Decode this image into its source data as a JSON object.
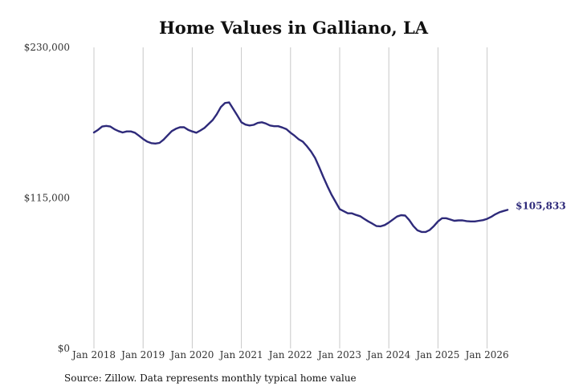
{
  "title": "Home Values in Galliano, LA",
  "source": "Source: Zillow. Data represents monthly typical home value",
  "colors": {
    "line": "#2e2a7a",
    "grid": "#c8c8c8"
  },
  "chart_data": {
    "type": "line",
    "title": "Home Values in Galliano, LA",
    "xlabel": "",
    "ylabel": "",
    "ylim": [
      0,
      230000
    ],
    "y_ticks": [
      {
        "value": 0,
        "label": "$0"
      },
      {
        "value": 115000,
        "label": "$115,000"
      },
      {
        "value": 230000,
        "label": "$230,000"
      }
    ],
    "x_ticks": [
      {
        "value": 2018.0,
        "label": "Jan 2018"
      },
      {
        "value": 2019.0,
        "label": "Jan 2019"
      },
      {
        "value": 2020.0,
        "label": "Jan 2020"
      },
      {
        "value": 2021.0,
        "label": "Jan 2021"
      },
      {
        "value": 2022.0,
        "label": "Jan 2022"
      },
      {
        "value": 2023.0,
        "label": "Jan 2023"
      },
      {
        "value": 2024.0,
        "label": "Jan 2024"
      },
      {
        "value": 2025.0,
        "label": "Jan 2025"
      },
      {
        "value": 2026.0,
        "label": "Jan 2026"
      }
    ],
    "xlim": [
      2017.75,
      2026.75
    ],
    "grid": "vertical",
    "end_label": "$105,833",
    "series": [
      {
        "x": [
          2018.0,
          2018.083,
          2018.167,
          2018.25,
          2018.333,
          2018.417,
          2018.5,
          2018.583,
          2018.667,
          2018.75,
          2018.833,
          2018.917,
          2019.0,
          2019.083,
          2019.167,
          2019.25,
          2019.333,
          2019.417,
          2019.5,
          2019.583,
          2019.667,
          2019.75,
          2019.833,
          2019.917,
          2020.0,
          2020.083,
          2020.167,
          2020.25,
          2020.333,
          2020.417,
          2020.5,
          2020.583,
          2020.667,
          2020.75,
          2020.833,
          2020.917,
          2021.0,
          2021.083,
          2021.167,
          2021.25,
          2021.333,
          2021.417,
          2021.5,
          2021.583,
          2021.667,
          2021.75,
          2021.833,
          2021.917,
          2022.0,
          2022.083,
          2022.167,
          2022.25,
          2022.333,
          2022.417,
          2022.5,
          2022.583,
          2022.667,
          2022.75,
          2022.833,
          2022.917,
          2023.0,
          2023.083,
          2023.167,
          2023.25,
          2023.333,
          2023.417,
          2023.5,
          2023.583,
          2023.667,
          2023.75,
          2023.833,
          2023.917,
          2024.0,
          2024.083,
          2024.167,
          2024.25,
          2024.333,
          2024.417,
          2024.5,
          2024.583,
          2024.667,
          2024.75,
          2024.833,
          2024.917,
          2025.0,
          2025.083,
          2025.167,
          2025.25,
          2025.333,
          2025.417,
          2025.5,
          2025.583,
          2025.667,
          2025.75,
          2025.833,
          2025.917,
          2026.0,
          2026.083,
          2026.167,
          2026.25,
          2026.333,
          2026.417
        ],
        "values": [
          165000,
          167000,
          169500,
          170000,
          169500,
          167500,
          166000,
          165000,
          165800,
          165800,
          164800,
          162500,
          160000,
          158000,
          156800,
          156500,
          157000,
          159500,
          162800,
          166000,
          167800,
          169000,
          169000,
          167000,
          165800,
          164800,
          166500,
          168500,
          171500,
          174500,
          179000,
          184500,
          187500,
          188000,
          183000,
          178000,
          172800,
          171000,
          170300,
          170800,
          172300,
          172800,
          171800,
          170300,
          169800,
          169800,
          168800,
          167500,
          164800,
          162500,
          159800,
          158000,
          154500,
          150500,
          145500,
          138500,
          131000,
          124000,
          117500,
          112000,
          106500,
          104800,
          103200,
          103200,
          102000,
          101000,
          99000,
          97000,
          95300,
          93500,
          93300,
          94300,
          96200,
          98500,
          100800,
          101800,
          101500,
          98000,
          93500,
          90200,
          89000,
          89000,
          90500,
          93500,
          97000,
          99500,
          99500,
          98500,
          97500,
          97800,
          97800,
          97300,
          97000,
          97000,
          97500,
          98000,
          99000,
          100500,
          102500,
          104000,
          105000,
          105833
        ]
      }
    ]
  }
}
